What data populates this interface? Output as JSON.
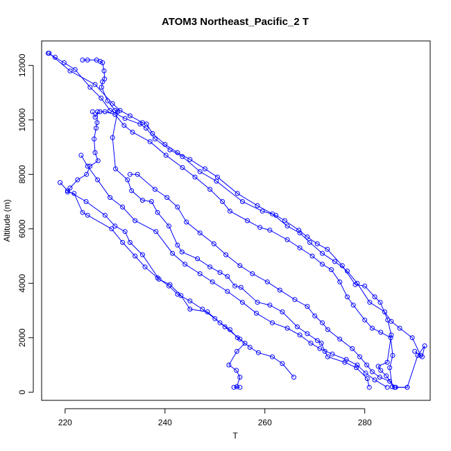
{
  "chart_data": {
    "type": "line",
    "title": "ATOM3 Northeast_Pacific_2 T",
    "xlabel": "T",
    "ylabel": "Altitude (m)",
    "xlim": [
      215.3,
      293.1
    ],
    "ylim": [
      -300,
      12900
    ],
    "x_ticks": [
      220,
      240,
      260,
      280
    ],
    "y_ticks": [
      0,
      2000,
      4000,
      6000,
      8000,
      10000,
      12000
    ],
    "color": "#0000ff",
    "marker": "open-circle",
    "grid": false,
    "series": [
      {
        "values_xy": [
          [
            290.0,
            1500
          ],
          [
            291.5,
            1300
          ],
          [
            292.0,
            1700
          ],
          [
            290.6,
            1350
          ],
          [
            288.5,
            180
          ],
          [
            286.0,
            180
          ],
          [
            284.3,
            600
          ],
          [
            283.2,
            800
          ],
          [
            282.7,
            950
          ],
          [
            284.5,
            1100
          ],
          [
            285.3,
            2100
          ],
          [
            284.6,
            2650
          ],
          [
            283.1,
            3300
          ],
          [
            282.0,
            3500
          ],
          [
            280.0,
            3900
          ],
          [
            278.1,
            3950
          ],
          [
            275.5,
            4650
          ],
          [
            272.5,
            5250
          ],
          [
            270.5,
            5450
          ],
          [
            268.5,
            5700
          ],
          [
            266.8,
            5950
          ],
          [
            264.0,
            6300
          ],
          [
            262.2,
            6500
          ],
          [
            259.5,
            6650
          ],
          [
            255.5,
            7000
          ],
          [
            250.3,
            7750
          ],
          [
            247.0,
            8100
          ],
          [
            243.5,
            8650
          ],
          [
            241.0,
            8900
          ],
          [
            238.0,
            9300
          ],
          [
            236.2,
            9700
          ],
          [
            235.0,
            9850
          ],
          [
            232.0,
            10050
          ],
          [
            229.0,
            10350
          ],
          [
            227.2,
            10800
          ],
          [
            225.0,
            11200
          ],
          [
            222.0,
            11850
          ],
          [
            219.8,
            12100
          ],
          [
            218.0,
            12300
          ],
          [
            216.6,
            12450
          ]
        ]
      },
      {
        "values_xy": [
          [
            216.8,
            12450
          ],
          [
            221.0,
            11800
          ],
          [
            226.0,
            11300
          ],
          [
            229.5,
            10600
          ],
          [
            231.0,
            10350
          ],
          [
            233.0,
            10150
          ],
          [
            235.5,
            9900
          ],
          [
            236.3,
            9850
          ],
          [
            237.5,
            9500
          ],
          [
            240.0,
            9100
          ],
          [
            242.5,
            8800
          ],
          [
            245.0,
            8550
          ],
          [
            248.0,
            8200
          ],
          [
            250.5,
            7900
          ],
          [
            254.5,
            7300
          ],
          [
            258.5,
            6850
          ],
          [
            261.5,
            6550
          ],
          [
            264.5,
            6100
          ],
          [
            267.0,
            5850
          ],
          [
            269.0,
            5500
          ],
          [
            271.5,
            5100
          ],
          [
            274.0,
            4800
          ],
          [
            276.5,
            4450
          ],
          [
            278.5,
            4000
          ],
          [
            281.0,
            3300
          ],
          [
            284.0,
            2950
          ],
          [
            285.3,
            2600
          ],
          [
            287.0,
            2350
          ],
          [
            289.5,
            2000
          ],
          [
            291.2,
            1350
          ]
        ]
      },
      {
        "values_xy": [
          [
            223.5,
            12200
          ],
          [
            224.5,
            12200
          ],
          [
            226.3,
            12200
          ],
          [
            227.0,
            12150
          ],
          [
            227.5,
            12100
          ],
          [
            227.8,
            11800
          ],
          [
            227.9,
            11500
          ],
          [
            227.5,
            11400
          ],
          [
            227.3,
            11200
          ],
          [
            228.5,
            10700
          ],
          [
            230.0,
            10350
          ],
          [
            230.5,
            10300
          ],
          [
            229.5,
            9350
          ],
          [
            230.1,
            8200
          ],
          [
            232.5,
            7800
          ],
          [
            233.3,
            7400
          ],
          [
            235.5,
            7050
          ],
          [
            237.3,
            7000
          ],
          [
            238.5,
            6600
          ],
          [
            240.8,
            6100
          ],
          [
            242.5,
            5400
          ],
          [
            243.4,
            5150
          ],
          [
            246.5,
            4900
          ],
          [
            249.0,
            4600
          ],
          [
            251.0,
            4400
          ],
          [
            252.5,
            4250
          ],
          [
            254.0,
            3900
          ],
          [
            255.2,
            3850
          ],
          [
            258.5,
            3300
          ],
          [
            261.0,
            3200
          ],
          [
            263.5,
            2950
          ],
          [
            266.5,
            2400
          ],
          [
            268.5,
            2150
          ],
          [
            270.5,
            1900
          ],
          [
            271.3,
            1800
          ],
          [
            272.0,
            1500
          ],
          [
            272.6,
            1300
          ],
          [
            276.0,
            1100
          ],
          [
            278.3,
            900
          ],
          [
            280.5,
            500
          ],
          [
            280.9,
            180
          ]
        ]
      },
      {
        "values_xy": [
          [
            225.5,
            10300
          ],
          [
            226.0,
            10100
          ],
          [
            226.5,
            10300
          ],
          [
            226.4,
            9900
          ],
          [
            226.2,
            9700
          ],
          [
            225.8,
            9300
          ],
          [
            226.0,
            8800
          ],
          [
            226.6,
            8500
          ],
          [
            225.0,
            8300
          ],
          [
            224.3,
            8000
          ],
          [
            222.5,
            7800
          ],
          [
            221.0,
            7500
          ],
          [
            220.5,
            7350
          ],
          [
            221.8,
            7300
          ],
          [
            223.5,
            6600
          ],
          [
            224.5,
            6500
          ],
          [
            229.3,
            6000
          ],
          [
            231.5,
            5500
          ],
          [
            234.0,
            5000
          ],
          [
            236.0,
            4600
          ],
          [
            238.5,
            4200
          ],
          [
            240.8,
            3900
          ],
          [
            242.5,
            3600
          ],
          [
            245.0,
            3350
          ],
          [
            247.5,
            3050
          ],
          [
            250.0,
            2700
          ],
          [
            252.0,
            2400
          ],
          [
            255.0,
            1950
          ],
          [
            257.0,
            1650
          ],
          [
            258.7,
            1450
          ],
          [
            261.5,
            1300
          ],
          [
            263.5,
            1050
          ],
          [
            265.8,
            550
          ]
        ]
      },
      {
        "values_xy": [
          [
            219.0,
            7700
          ],
          [
            220.5,
            7400
          ],
          [
            224.2,
            7000
          ],
          [
            228.0,
            6500
          ],
          [
            230.0,
            6100
          ],
          [
            232.0,
            5900
          ],
          [
            233.0,
            5500
          ],
          [
            235.5,
            5050
          ],
          [
            238.8,
            4150
          ],
          [
            241.0,
            3950
          ],
          [
            243.2,
            3550
          ],
          [
            245.0,
            3050
          ],
          [
            248.5,
            2950
          ],
          [
            251.0,
            2550
          ],
          [
            253.0,
            2300
          ],
          [
            254.5,
            2000
          ],
          [
            256.0,
            1800
          ],
          [
            254.4,
            1500
          ],
          [
            252.8,
            1000
          ],
          [
            254.3,
            800
          ],
          [
            255.0,
            550
          ],
          [
            254.4,
            200
          ],
          [
            253.8,
            180
          ],
          [
            255.0,
            180
          ]
        ]
      },
      {
        "values_xy": [
          [
            227.0,
            10300
          ],
          [
            228.0,
            10300
          ],
          [
            230.0,
            10200
          ],
          [
            231.8,
            9800
          ],
          [
            233.5,
            9550
          ],
          [
            237.0,
            9200
          ],
          [
            240.2,
            8700
          ],
          [
            243.5,
            8250
          ],
          [
            246.0,
            7900
          ],
          [
            249.0,
            7450
          ],
          [
            251.5,
            7000
          ],
          [
            253.0,
            6650
          ],
          [
            256.5,
            6300
          ],
          [
            259.0,
            6050
          ],
          [
            261.0,
            5950
          ],
          [
            264.5,
            5600
          ],
          [
            267.0,
            5300
          ],
          [
            269.5,
            5000
          ],
          [
            271.5,
            4700
          ],
          [
            273.3,
            4500
          ],
          [
            275.0,
            4050
          ],
          [
            276.5,
            3500
          ],
          [
            277.7,
            3200
          ],
          [
            280.0,
            2650
          ],
          [
            281.5,
            2350
          ],
          [
            283.2,
            2200
          ],
          [
            285.2,
            2000
          ],
          [
            285.6,
            1350
          ],
          [
            285.0,
            900
          ],
          [
            285.5,
            200
          ],
          [
            286.2,
            180
          ],
          [
            288.5,
            180
          ]
        ]
      },
      {
        "values_xy": [
          [
            223.2,
            8700
          ],
          [
            224.5,
            8300
          ],
          [
            226.5,
            7800
          ],
          [
            229.0,
            7150
          ],
          [
            231.5,
            6800
          ],
          [
            234.0,
            6300
          ],
          [
            238.2,
            5900
          ],
          [
            241.5,
            5100
          ],
          [
            244.0,
            4700
          ],
          [
            247.0,
            4350
          ],
          [
            249.5,
            4050
          ],
          [
            252.5,
            3700
          ],
          [
            255.5,
            3300
          ],
          [
            258.3,
            2900
          ],
          [
            261.5,
            2550
          ],
          [
            264.5,
            2350
          ],
          [
            267.0,
            2100
          ],
          [
            269.2,
            1800
          ],
          [
            271.0,
            1600
          ],
          [
            273.5,
            1400
          ],
          [
            276.3,
            1200
          ],
          [
            278.5,
            1000
          ],
          [
            280.2,
            700
          ],
          [
            282.0,
            450
          ],
          [
            284.5,
            180
          ]
        ]
      },
      {
        "values_xy": [
          [
            233.0,
            8000
          ],
          [
            234.5,
            8000
          ],
          [
            238.0,
            7450
          ],
          [
            240.4,
            7150
          ],
          [
            242.5,
            6800
          ],
          [
            244.3,
            6250
          ],
          [
            247.0,
            5850
          ],
          [
            249.8,
            5450
          ],
          [
            252.2,
            5050
          ],
          [
            255.0,
            4650
          ],
          [
            257.5,
            4350
          ],
          [
            260.5,
            4050
          ],
          [
            263.0,
            3750
          ],
          [
            266.0,
            3400
          ],
          [
            268.5,
            3150
          ],
          [
            270.0,
            2800
          ],
          [
            271.5,
            2550
          ],
          [
            272.6,
            2300
          ],
          [
            275.0,
            1950
          ],
          [
            277.5,
            1600
          ],
          [
            279.0,
            1300
          ],
          [
            280.4,
            1000
          ],
          [
            281.5,
            750
          ],
          [
            283.0,
            550
          ],
          [
            285.0,
            400
          ],
          [
            286.0,
            180
          ]
        ]
      }
    ]
  }
}
